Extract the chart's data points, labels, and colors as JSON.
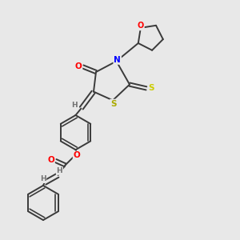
{
  "bg_color": "#e8e8e8",
  "bond_color": "#3a3a3a",
  "bond_width": 1.4,
  "atom_colors": {
    "O": "#ff0000",
    "N": "#0000ff",
    "S_yellow": "#cccc00",
    "S_ring": "#aaaa00",
    "H": "#707070"
  },
  "figsize": [
    3.0,
    3.0
  ],
  "dpi": 100
}
